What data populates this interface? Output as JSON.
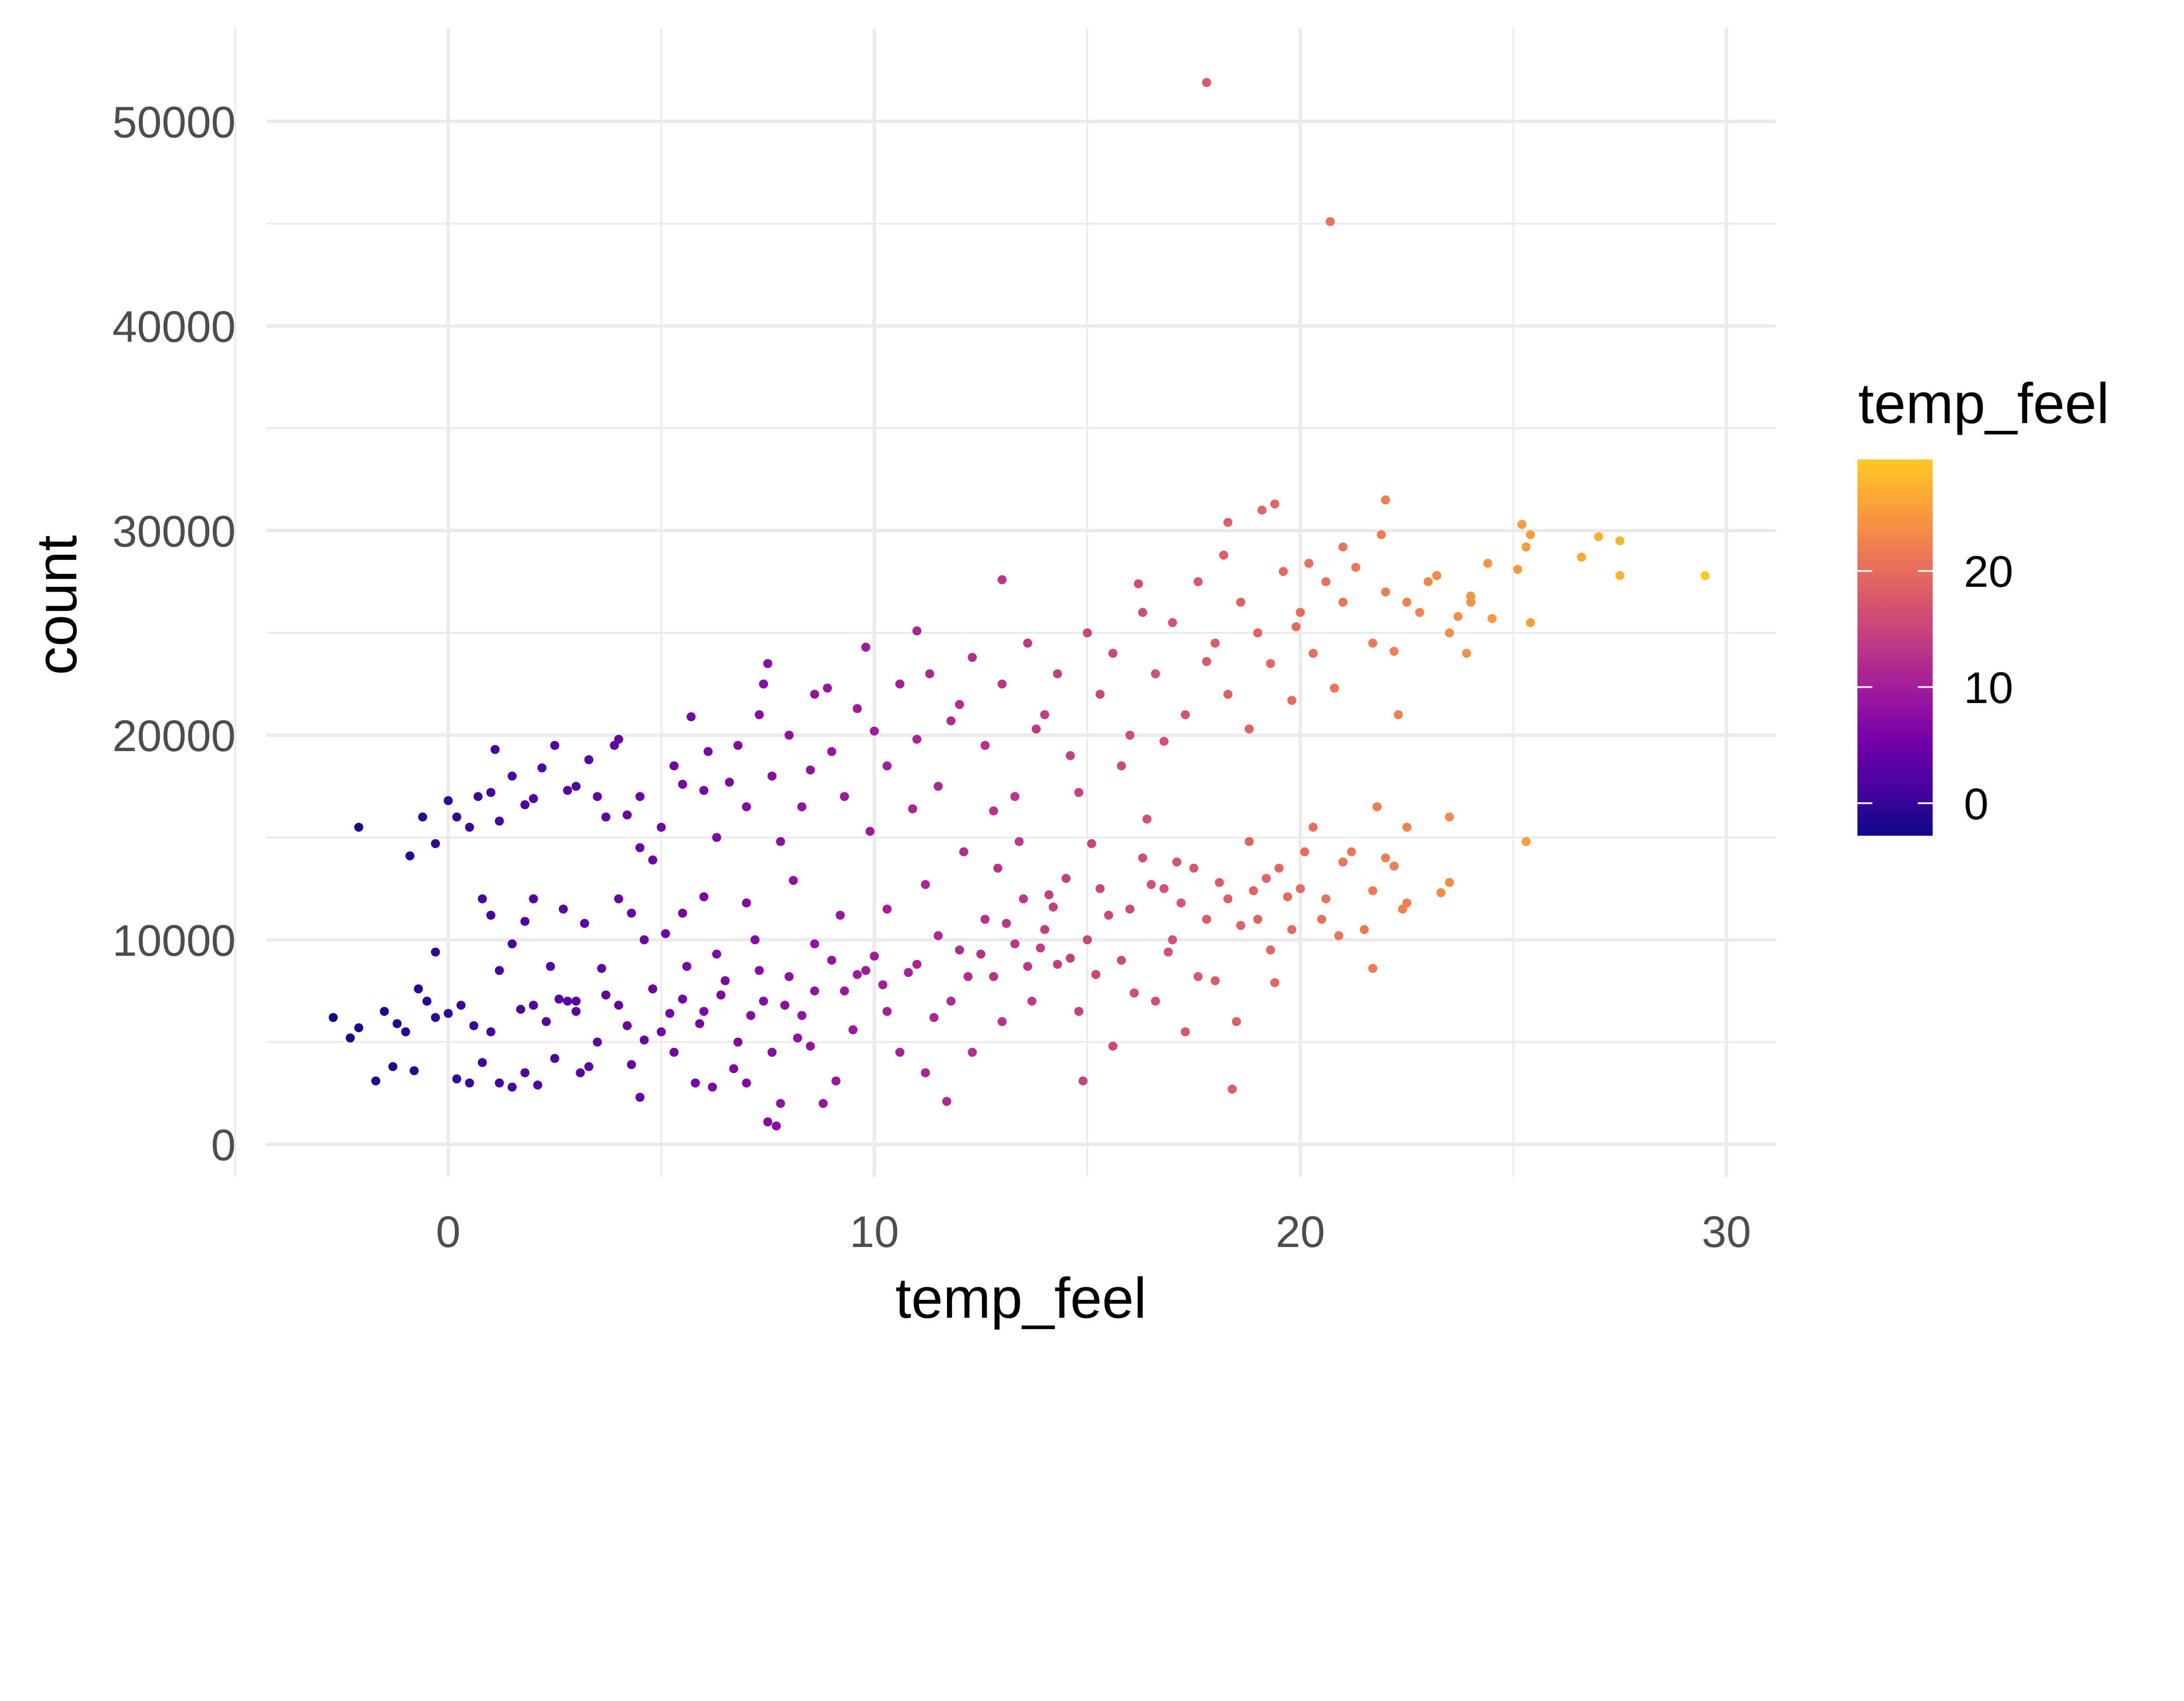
{
  "chart_data": {
    "type": "scatter",
    "title": "",
    "xlabel": "temp_feel",
    "ylabel": "count",
    "xlim": [
      -4.3,
      31.1
    ],
    "ylim": [
      -1600,
      54500
    ],
    "x_ticks": [
      0,
      10,
      20,
      30
    ],
    "x_tick_labels": [
      "0",
      "10",
      "20",
      "30"
    ],
    "x_minor_ticks": [
      -5,
      5,
      15,
      25
    ],
    "y_ticks": [
      0,
      10000,
      20000,
      30000,
      40000,
      50000
    ],
    "y_tick_labels": [
      "0",
      "10000",
      "20000",
      "30000",
      "40000",
      "50000"
    ],
    "y_minor_ticks": [
      5000,
      15000,
      25000,
      35000,
      45000
    ],
    "grid": true,
    "legend": {
      "title": "temp_feel",
      "placement": "right",
      "type": "colorbar",
      "range": [
        -2.8,
        29.6
      ],
      "ticks": [
        0,
        10,
        20
      ],
      "tick_labels": [
        "0",
        "10",
        "20"
      ],
      "palette": [
        "#0d0887",
        "#46039f",
        "#7201a8",
        "#9c179e",
        "#bd3786",
        "#d8576b",
        "#ed7953",
        "#fb9f3a",
        "#fdca26"
      ]
    },
    "color_by": "x",
    "points": [
      [
        17.8,
        51900
      ],
      [
        20.7,
        45100
      ],
      [
        29.5,
        27800
      ],
      [
        27.5,
        29500
      ],
      [
        27.5,
        27800
      ],
      [
        27.0,
        29700
      ],
      [
        26.6,
        28700
      ],
      [
        25.2,
        30300
      ],
      [
        25.4,
        29800
      ],
      [
        25.1,
        28100
      ],
      [
        25.3,
        29200
      ],
      [
        25.4,
        25500
      ],
      [
        25.3,
        14800
      ],
      [
        23.5,
        16000
      ],
      [
        23.5,
        12800
      ],
      [
        23.3,
        12300
      ],
      [
        22.4,
        11500
      ],
      [
        21.7,
        8600
      ],
      [
        18.4,
        2700
      ],
      [
        -2.7,
        6200
      ],
      [
        -2.3,
        5200
      ],
      [
        -2.1,
        5700
      ],
      [
        -2.1,
        15500
      ],
      [
        -1.7,
        3100
      ],
      [
        -1.3,
        3800
      ],
      [
        -0.8,
        3600
      ],
      [
        22.0,
        31500
      ],
      [
        19.4,
        31300
      ],
      [
        19.1,
        31000
      ],
      [
        13.0,
        27600
      ],
      [
        16.2,
        27400
      ],
      [
        7.5,
        23500
      ],
      [
        9.8,
        24300
      ],
      [
        1.1,
        19300
      ],
      [
        7.5,
        1100
      ],
      [
        7.7,
        900
      ],
      [
        22.3,
        21000
      ],
      [
        18.3,
        30400
      ],
      [
        23.9,
        24000
      ],
      [
        24.4,
        28400
      ],
      [
        24.5,
        25700
      ],
      [
        22.5,
        15500
      ],
      [
        21.8,
        16500
      ],
      [
        23.2,
        27800
      ],
      [
        24.0,
        26800
      ],
      [
        23.7,
        25800
      ],
      [
        22.8,
        26000
      ],
      [
        11.0,
        25100
      ],
      [
        8.9,
        22300
      ],
      [
        7.4,
        22500
      ],
      [
        -1.5,
        6500
      ],
      [
        -1.2,
        5900
      ],
      [
        -1.0,
        5500
      ],
      [
        -0.7,
        7600
      ],
      [
        -0.5,
        7000
      ],
      [
        -0.3,
        6200
      ],
      [
        0.0,
        6400
      ],
      [
        0.2,
        3200
      ],
      [
        0.3,
        6800
      ],
      [
        0.5,
        3000
      ],
      [
        0.6,
        5800
      ],
      [
        0.8,
        4000
      ],
      [
        1.0,
        5500
      ],
      [
        1.2,
        3000
      ],
      [
        1.5,
        2800
      ],
      [
        1.7,
        6600
      ],
      [
        1.8,
        3500
      ],
      [
        2.0,
        6800
      ],
      [
        2.1,
        2900
      ],
      [
        2.3,
        6000
      ],
      [
        2.5,
        4200
      ],
      [
        2.6,
        7100
      ],
      [
        2.8,
        7000
      ],
      [
        3.0,
        6500
      ],
      [
        3.1,
        3500
      ],
      [
        3.3,
        3800
      ],
      [
        3.5,
        5000
      ],
      [
        3.7,
        7300
      ],
      [
        4.0,
        6800
      ],
      [
        4.2,
        5800
      ],
      [
        4.3,
        3900
      ],
      [
        4.5,
        2300
      ],
      [
        4.6,
        5100
      ],
      [
        4.8,
        7600
      ],
      [
        5.0,
        5500
      ],
      [
        5.2,
        6400
      ],
      [
        5.3,
        4500
      ],
      [
        5.5,
        7100
      ],
      [
        5.6,
        8700
      ],
      [
        5.8,
        3000
      ],
      [
        5.9,
        5900
      ],
      [
        6.0,
        6500
      ],
      [
        6.2,
        2800
      ],
      [
        6.4,
        7300
      ],
      [
        6.5,
        8000
      ],
      [
        6.7,
        3700
      ],
      [
        6.8,
        5000
      ],
      [
        7.0,
        3000
      ],
      [
        7.1,
        6300
      ],
      [
        7.2,
        10000
      ],
      [
        7.3,
        8500
      ],
      [
        7.4,
        7000
      ],
      [
        7.6,
        4500
      ],
      [
        7.8,
        2000
      ],
      [
        7.9,
        6800
      ],
      [
        8.0,
        8200
      ],
      [
        8.2,
        5200
      ],
      [
        8.3,
        6300
      ],
      [
        8.5,
        4800
      ],
      [
        8.6,
        7500
      ],
      [
        8.8,
        2000
      ],
      [
        9.0,
        9000
      ],
      [
        9.1,
        3100
      ],
      [
        9.3,
        7500
      ],
      [
        9.5,
        5600
      ],
      [
        9.6,
        8300
      ],
      [
        9.8,
        8500
      ],
      [
        10.0,
        9200
      ],
      [
        10.2,
        7800
      ],
      [
        10.3,
        6500
      ],
      [
        10.6,
        4500
      ],
      [
        10.8,
        8400
      ],
      [
        11.0,
        8800
      ],
      [
        11.2,
        3500
      ],
      [
        11.4,
        6200
      ],
      [
        11.5,
        10200
      ],
      [
        11.7,
        2100
      ],
      [
        11.8,
        7000
      ],
      [
        12.0,
        9500
      ],
      [
        12.2,
        8200
      ],
      [
        12.3,
        4500
      ],
      [
        12.5,
        9300
      ],
      [
        12.6,
        11000
      ],
      [
        12.8,
        8200
      ],
      [
        13.0,
        6000
      ],
      [
        13.1,
        10800
      ],
      [
        13.3,
        9800
      ],
      [
        13.5,
        12000
      ],
      [
        13.6,
        8700
      ],
      [
        13.7,
        7000
      ],
      [
        13.9,
        9600
      ],
      [
        14.0,
        10500
      ],
      [
        14.2,
        11600
      ],
      [
        14.3,
        8800
      ],
      [
        14.5,
        13000
      ],
      [
        14.6,
        9100
      ],
      [
        14.8,
        6500
      ],
      [
        14.9,
        3100
      ],
      [
        15.0,
        10000
      ],
      [
        15.2,
        8300
      ],
      [
        15.3,
        12500
      ],
      [
        15.5,
        11200
      ],
      [
        15.6,
        4800
      ],
      [
        15.8,
        9000
      ],
      [
        16.0,
        11500
      ],
      [
        16.1,
        7400
      ],
      [
        16.3,
        14000
      ],
      [
        16.5,
        12700
      ],
      [
        16.6,
        7000
      ],
      [
        16.8,
        12500
      ],
      [
        16.9,
        9400
      ],
      [
        17.0,
        10000
      ],
      [
        17.2,
        11800
      ],
      [
        17.3,
        5500
      ],
      [
        17.5,
        13500
      ],
      [
        17.6,
        8200
      ],
      [
        17.8,
        11000
      ],
      [
        18.0,
        8000
      ],
      [
        18.1,
        12800
      ],
      [
        18.3,
        12000
      ],
      [
        18.5,
        6000
      ],
      [
        18.6,
        10700
      ],
      [
        18.8,
        14800
      ],
      [
        18.9,
        12400
      ],
      [
        19.0,
        11000
      ],
      [
        19.2,
        13000
      ],
      [
        19.3,
        9500
      ],
      [
        19.4,
        7900
      ],
      [
        19.5,
        13500
      ],
      [
        19.7,
        12100
      ],
      [
        19.8,
        10500
      ],
      [
        20.0,
        12500
      ],
      [
        20.1,
        14300
      ],
      [
        20.3,
        15500
      ],
      [
        20.5,
        11000
      ],
      [
        20.6,
        12000
      ],
      [
        20.9,
        10200
      ],
      [
        21.0,
        13800
      ],
      [
        21.2,
        14300
      ],
      [
        21.5,
        10500
      ],
      [
        21.7,
        12400
      ],
      [
        22.0,
        14000
      ],
      [
        22.2,
        13600
      ],
      [
        22.5,
        11800
      ],
      [
        -0.3,
        9400
      ],
      [
        0.8,
        12000
      ],
      [
        1.0,
        11200
      ],
      [
        1.2,
        8500
      ],
      [
        1.5,
        9800
      ],
      [
        1.8,
        10900
      ],
      [
        2.0,
        12000
      ],
      [
        2.4,
        8700
      ],
      [
        2.7,
        11500
      ],
      [
        3.0,
        7000
      ],
      [
        3.2,
        10800
      ],
      [
        3.6,
        8600
      ],
      [
        4.0,
        12000
      ],
      [
        4.3,
        11300
      ],
      [
        4.6,
        10000
      ],
      [
        5.1,
        10300
      ],
      [
        5.5,
        11300
      ],
      [
        6.0,
        12100
      ],
      [
        6.3,
        9300
      ],
      [
        7.0,
        11800
      ],
      [
        8.1,
        12900
      ],
      [
        8.6,
        9800
      ],
      [
        9.2,
        11200
      ],
      [
        10.3,
        11500
      ],
      [
        11.2,
        12700
      ],
      [
        12.1,
        14300
      ],
      [
        12.9,
        13500
      ],
      [
        13.4,
        14800
      ],
      [
        14.1,
        12200
      ],
      [
        15.1,
        14700
      ],
      [
        16.4,
        15900
      ],
      [
        17.1,
        13800
      ],
      [
        -0.9,
        14100
      ],
      [
        -0.6,
        16000
      ],
      [
        -0.3,
        14700
      ],
      [
        0.0,
        16800
      ],
      [
        0.2,
        16000
      ],
      [
        0.5,
        15500
      ],
      [
        0.7,
        17000
      ],
      [
        1.0,
        17200
      ],
      [
        1.2,
        15800
      ],
      [
        1.5,
        18000
      ],
      [
        1.8,
        16600
      ],
      [
        2.0,
        16900
      ],
      [
        2.2,
        18400
      ],
      [
        2.5,
        19500
      ],
      [
        2.8,
        17300
      ],
      [
        3.0,
        17500
      ],
      [
        3.3,
        18800
      ],
      [
        3.5,
        17000
      ],
      [
        3.7,
        16000
      ],
      [
        3.9,
        19500
      ],
      [
        4.0,
        19800
      ],
      [
        4.2,
        16100
      ],
      [
        4.5,
        17000
      ],
      [
        4.5,
        14500
      ],
      [
        4.8,
        13900
      ],
      [
        5.0,
        15500
      ],
      [
        5.3,
        18500
      ],
      [
        5.5,
        17600
      ],
      [
        5.7,
        20900
      ],
      [
        6.0,
        17300
      ],
      [
        6.1,
        19200
      ],
      [
        6.3,
        15000
      ],
      [
        6.6,
        17700
      ],
      [
        6.8,
        19500
      ],
      [
        7.0,
        16500
      ],
      [
        7.3,
        21000
      ],
      [
        7.6,
        18000
      ],
      [
        7.8,
        14800
      ],
      [
        8.0,
        20000
      ],
      [
        8.3,
        16500
      ],
      [
        8.5,
        18300
      ],
      [
        8.6,
        22000
      ],
      [
        9.0,
        19200
      ],
      [
        9.3,
        17000
      ],
      [
        9.6,
        21300
      ],
      [
        9.9,
        15300
      ],
      [
        10.0,
        20200
      ],
      [
        10.3,
        18500
      ],
      [
        10.6,
        22500
      ],
      [
        10.9,
        16400
      ],
      [
        11.0,
        19800
      ],
      [
        11.3,
        23000
      ],
      [
        11.5,
        17500
      ],
      [
        11.8,
        20700
      ],
      [
        12.0,
        21500
      ],
      [
        12.3,
        23800
      ],
      [
        12.6,
        19500
      ],
      [
        12.8,
        16300
      ],
      [
        13.0,
        22500
      ],
      [
        13.3,
        17000
      ],
      [
        13.6,
        24500
      ],
      [
        13.8,
        20300
      ],
      [
        14.0,
        21000
      ],
      [
        14.3,
        23000
      ],
      [
        14.6,
        19000
      ],
      [
        14.8,
        17200
      ],
      [
        15.0,
        25000
      ],
      [
        15.3,
        22000
      ],
      [
        15.6,
        24000
      ],
      [
        15.8,
        18500
      ],
      [
        16.0,
        20000
      ],
      [
        16.3,
        26000
      ],
      [
        16.6,
        23000
      ],
      [
        16.8,
        19700
      ],
      [
        17.0,
        25500
      ],
      [
        17.3,
        21000
      ],
      [
        17.6,
        27500
      ],
      [
        17.8,
        23600
      ],
      [
        18.0,
        24500
      ],
      [
        18.3,
        22000
      ],
      [
        18.6,
        26500
      ],
      [
        18.8,
        20300
      ],
      [
        19.0,
        25000
      ],
      [
        19.3,
        23500
      ],
      [
        19.6,
        28000
      ],
      [
        19.8,
        21700
      ],
      [
        20.0,
        26000
      ],
      [
        20.3,
        24000
      ],
      [
        20.6,
        27500
      ],
      [
        20.8,
        22300
      ],
      [
        21.0,
        26500
      ],
      [
        21.3,
        28200
      ],
      [
        21.7,
        24500
      ],
      [
        22.0,
        27000
      ],
      [
        22.2,
        24100
      ],
      [
        22.5,
        26500
      ],
      [
        23.0,
        27500
      ],
      [
        23.5,
        25000
      ],
      [
        24.0,
        26500
      ],
      [
        20.2,
        28400
      ],
      [
        21.0,
        29200
      ],
      [
        21.9,
        29800
      ],
      [
        19.9,
        25300
      ],
      [
        18.2,
        28800
      ]
    ]
  }
}
